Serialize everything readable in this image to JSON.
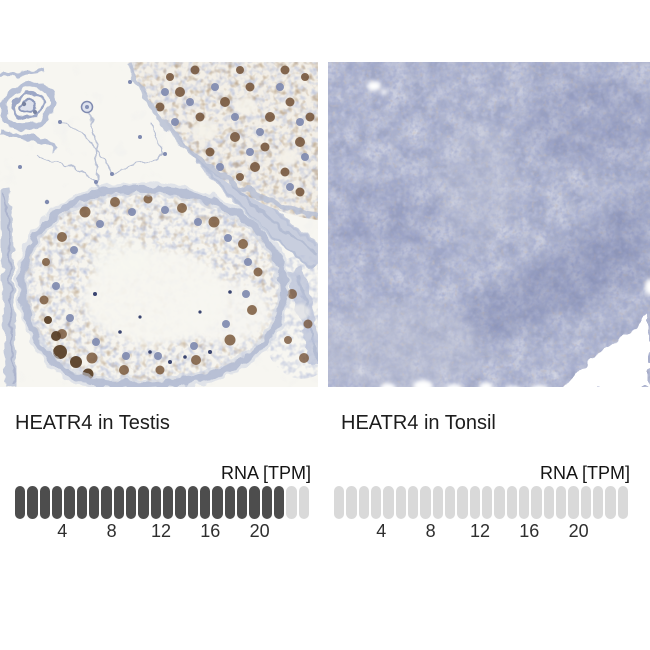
{
  "figure": {
    "background": "#ffffff"
  },
  "panels": [
    {
      "id": "testis",
      "title": "HEATR4 in Testis",
      "micrograph_description": "Immunohistochemistry micrograph of testis: seminiferous tubules outlined by pale blue stroma, blue-purple nuclei with scattered brown antibody staining on a near-white background",
      "rna_label": "RNA [TPM]",
      "bar": {
        "segments_total": 24,
        "segments_filled": 22,
        "tick_values": [
          4,
          8,
          12,
          16,
          20
        ]
      }
    },
    {
      "id": "tonsil",
      "title": "HEATR4 in Tonsil",
      "micrograph_description": "Immunohistochemistry micrograph of tonsil: dense blue-purple lymphoid cells filling the field with an unstained white wedge at the lower right",
      "rna_label": "RNA [TPM]",
      "bar": {
        "segments_total": 24,
        "segments_filled": 0,
        "tick_values": [
          4,
          8,
          12,
          16,
          20
        ]
      }
    }
  ],
  "colors": {
    "pill-filled": "#4d4d4d",
    "pill-empty": "#d9d9d9",
    "title-text": "#1d1d1d",
    "axis-text": "#2e2e2e",
    "label-text": "#141414",
    "stain-brown": "#7a5a3c",
    "hematoxylin-blue": "#8590b4",
    "tonsil-base": "#a0a7c4",
    "testis-background": "#f7f6f1"
  },
  "chart_data": [
    {
      "type": "bar",
      "title": "HEATR4 in Testis",
      "unit_label": "RNA [TPM]",
      "categories": [
        "Testis"
      ],
      "values": [
        22
      ],
      "segments_total": 24,
      "segments_filled": 22,
      "xlim": [
        0,
        24
      ],
      "tick_labels": [
        4,
        8,
        12,
        16,
        20
      ],
      "orientation": "horizontal-segmented",
      "legend": "none",
      "grid": false
    },
    {
      "type": "bar",
      "title": "HEATR4 in Tonsil",
      "unit_label": "RNA [TPM]",
      "categories": [
        "Tonsil"
      ],
      "values": [
        0
      ],
      "segments_total": 24,
      "segments_filled": 0,
      "xlim": [
        0,
        24
      ],
      "tick_labels": [
        4,
        8,
        12,
        16,
        20
      ],
      "orientation": "horizontal-segmented",
      "legend": "none",
      "grid": false
    }
  ]
}
